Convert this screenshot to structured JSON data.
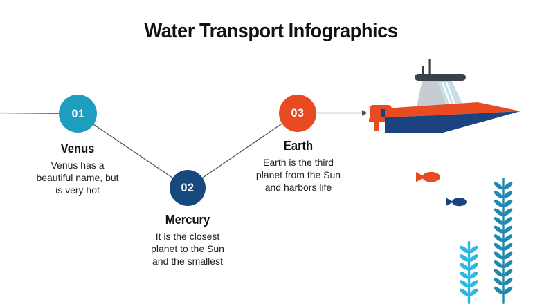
{
  "slide": {
    "title": "Water Transport Infographics",
    "background": "#FFFFFF"
  },
  "steps": [
    {
      "number": "01",
      "title": "Venus",
      "description": "Venus has a\nbeautiful name, but\nis very hot",
      "color": "#1E9DBE"
    },
    {
      "number": "02",
      "title": "Mercury",
      "description": "It is the closest\nplanet to the Sun\nand the smallest",
      "color": "#17497F"
    },
    {
      "number": "03",
      "title": "Earth",
      "description": "Earth is the third\nplanet from the Sun\nand harbors life",
      "color": "#E84A21"
    }
  ],
  "colors": {
    "connector_line": "#4D4D4D",
    "title_text": "#111111",
    "body_text": "#212121",
    "step_number_text": "#FFFFFF"
  },
  "illustration": {
    "boat": {
      "hull": "#1A4380",
      "deck_stripe": "#E84A21",
      "console": "#C6CCD2",
      "windshield": "#C5E0EB",
      "windshield_stripe": "#FFFFFF",
      "roof": "#3A4247",
      "motor": "#E84A21",
      "motor_bracket": "#1A4380"
    },
    "fish": [
      {
        "name": "orange-fish",
        "color": "#E84A21"
      },
      {
        "name": "navy-fish",
        "color": "#1A4380"
      }
    ],
    "seaweed": [
      {
        "name": "short-seaweed",
        "color": "#2CB9E0"
      },
      {
        "name": "tall-seaweed",
        "color": "#2189AE"
      }
    ]
  }
}
